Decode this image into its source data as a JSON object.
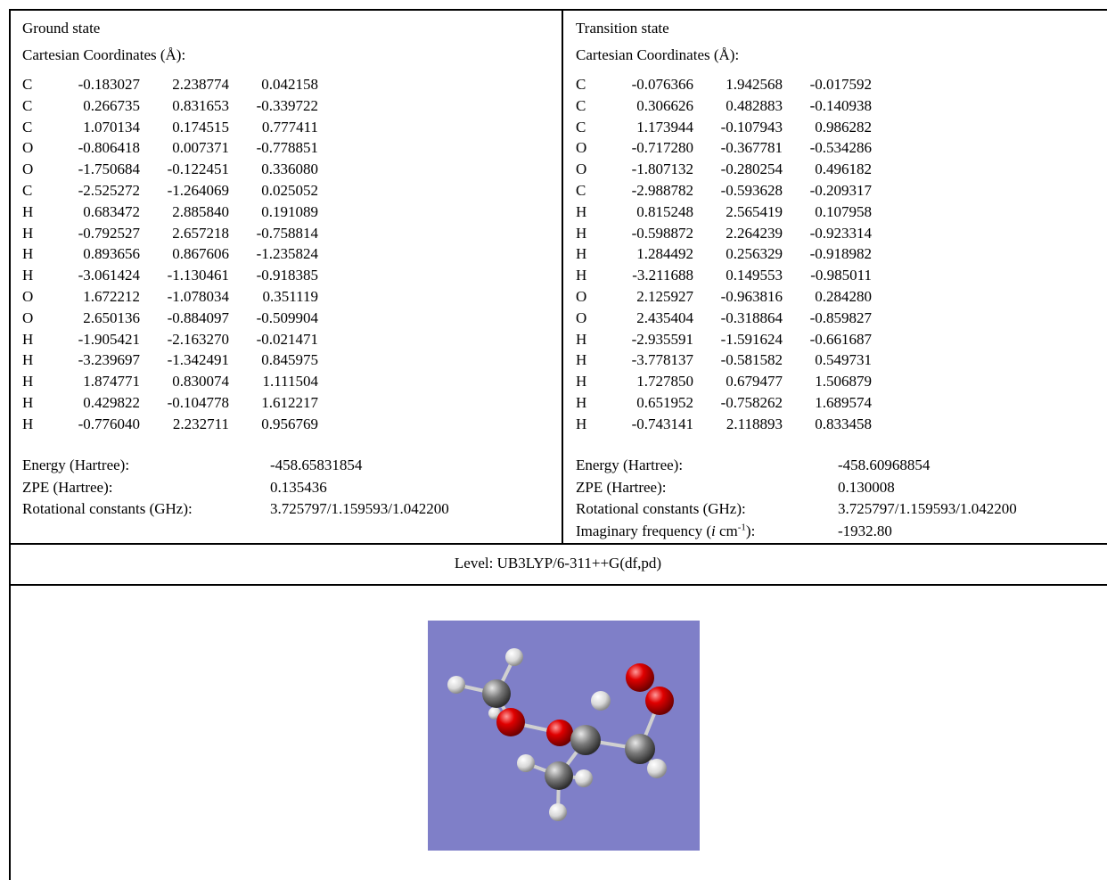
{
  "ground_state": {
    "title": "Ground state",
    "coordinates_heading": "Cartesian Coordinates (Å):",
    "atoms": [
      [
        "C",
        "-0.183027",
        "2.238774",
        "0.042158"
      ],
      [
        "C",
        "0.266735",
        "0.831653",
        "-0.339722"
      ],
      [
        "C",
        "1.070134",
        "0.174515",
        "0.777411"
      ],
      [
        "O",
        "-0.806418",
        "0.007371",
        "-0.778851"
      ],
      [
        "O",
        "-1.750684",
        "-0.122451",
        "0.336080"
      ],
      [
        "C",
        "-2.525272",
        "-1.264069",
        "0.025052"
      ],
      [
        "H",
        "0.683472",
        "2.885840",
        "0.191089"
      ],
      [
        "H",
        "-0.792527",
        "2.657218",
        "-0.758814"
      ],
      [
        "H",
        "0.893656",
        "0.867606",
        "-1.235824"
      ],
      [
        "H",
        "-3.061424",
        "-1.130461",
        "-0.918385"
      ],
      [
        "O",
        "1.672212",
        "-1.078034",
        "0.351119"
      ],
      [
        "O",
        "2.650136",
        "-0.884097",
        "-0.509904"
      ],
      [
        "H",
        "-1.905421",
        "-2.163270",
        "-0.021471"
      ],
      [
        "H",
        "-3.239697",
        "-1.342491",
        "0.845975"
      ],
      [
        "H",
        "1.874771",
        "0.830074",
        "1.111504"
      ],
      [
        "H",
        "0.429822",
        "-0.104778",
        "1.612217"
      ],
      [
        "H",
        "-0.776040",
        "2.232711",
        "0.956769"
      ]
    ],
    "properties": [
      {
        "label": "Energy (Hartree):",
        "value": "-458.65831854"
      },
      {
        "label": "ZPE (Hartree):",
        "value": "0.135436"
      },
      {
        "label": "Rotational constants (GHz):",
        "value": "3.725797/1.159593/1.042200"
      }
    ]
  },
  "transition_state": {
    "title": "Transition state",
    "coordinates_heading": "Cartesian Coordinates (Å):",
    "atoms": [
      [
        "C",
        "-0.076366",
        "1.942568",
        "-0.017592"
      ],
      [
        "C",
        "0.306626",
        "0.482883",
        "-0.140938"
      ],
      [
        "C",
        "1.173944",
        "-0.107943",
        "0.986282"
      ],
      [
        "O",
        "-0.717280",
        "-0.367781",
        "-0.534286"
      ],
      [
        "O",
        "-1.807132",
        "-0.280254",
        "0.496182"
      ],
      [
        "C",
        "-2.988782",
        "-0.593628",
        "-0.209317"
      ],
      [
        "H",
        "0.815248",
        "2.565419",
        "0.107958"
      ],
      [
        "H",
        "-0.598872",
        "2.264239",
        "-0.923314"
      ],
      [
        "H",
        "1.284492",
        "0.256329",
        "-0.918982"
      ],
      [
        "H",
        "-3.211688",
        "0.149553",
        "-0.985011"
      ],
      [
        "O",
        "2.125927",
        "-0.963816",
        "0.284280"
      ],
      [
        "O",
        "2.435404",
        "-0.318864",
        "-0.859827"
      ],
      [
        "H",
        "-2.935591",
        "-1.591624",
        "-0.661687"
      ],
      [
        "H",
        "-3.778137",
        "-0.581582",
        "0.549731"
      ],
      [
        "H",
        "1.727850",
        "0.679477",
        "1.506879"
      ],
      [
        "H",
        "0.651952",
        "-0.758262",
        "1.689574"
      ],
      [
        "H",
        "-0.743141",
        "2.118893",
        "0.833458"
      ]
    ],
    "properties": [
      {
        "label": "Energy (Hartree):",
        "value": "-458.60968854"
      },
      {
        "label": "ZPE (Hartree):",
        "value": "0.130008"
      },
      {
        "label": "Rotational constants (GHz):",
        "value": "3.725797/1.159593/1.042200"
      }
    ],
    "imaginary_frequency": {
      "label_parts": [
        "Imaginary frequency (",
        "i",
        " cm",
        "-1",
        "):"
      ],
      "value": "-1932.80"
    }
  },
  "level": "Level: UB3LYP/6-311++G(df,pd)"
}
